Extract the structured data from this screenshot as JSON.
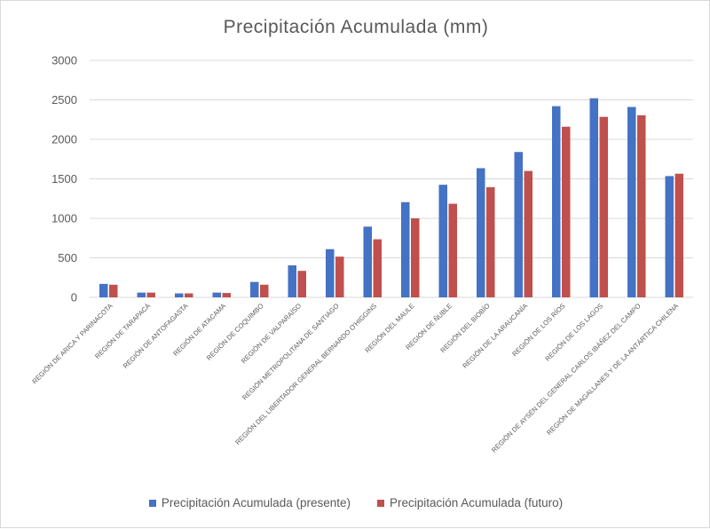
{
  "chart_data": {
    "type": "bar",
    "title": "Precipitación Acumulada (mm)",
    "xlabel": "",
    "ylabel": "",
    "ylim": [
      0,
      3000
    ],
    "yticks": [
      0,
      500,
      1000,
      1500,
      2000,
      2500,
      3000
    ],
    "grid": true,
    "legend_position": "bottom",
    "categories": [
      "REGIÓN DE ARICA Y PARINACOTA",
      "REGIÓN DE TARAPACÁ",
      "REGIÓN DE ANTOFAGASTA",
      "REGIÓN DE ATACAMA",
      "REGIÓN DE COQUIMBO",
      "REGIÓN DE VALPARAÍSO",
      "REGIÓN METROPOLITANA DE SANTIAGO",
      "REGIÓN DEL LIBERTADOR GENERAL BERNARDO O'HIGGINS",
      "REGIÓN DEL MAULE",
      "REGIÓN DE ÑUBLE",
      "REGIÓN DEL BIOBÍO",
      "REGIÓN DE LA ARAUCANÍA",
      "REGIÓN DE LOS RÍOS",
      "REGIÓN DE LOS LAGOS",
      "REGIÓN DE AYSÉN DEL GENERAL CARLOS IBÁÑEZ DEL CAMPO",
      "REGIÓN DE MAGALLANES Y DE LA ANTÁRTICA CHILENA"
    ],
    "series": [
      {
        "name": "Precipitación Acumulada (presente)",
        "color": "#4472c4",
        "values": [
          170,
          60,
          50,
          60,
          195,
          405,
          610,
          895,
          1205,
          1425,
          1635,
          1840,
          2420,
          2520,
          2410,
          1535
        ]
      },
      {
        "name": "Precipitación Acumulada (futuro)",
        "color": "#c0504d",
        "values": [
          160,
          60,
          50,
          55,
          160,
          335,
          515,
          735,
          1000,
          1185,
          1395,
          1600,
          2160,
          2285,
          2305,
          1565
        ]
      }
    ]
  }
}
